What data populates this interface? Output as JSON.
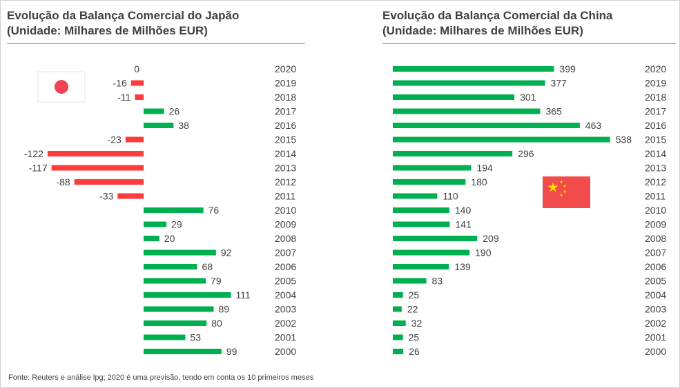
{
  "footnote": "Fonte: Reuters e análise lpg; 2020 é uma previsão, tendo em conta os 10 primeiros meses",
  "colors": {
    "positive": "#00b050",
    "negative": "#ff3b3b",
    "text": "#404040",
    "japan_flag_red": "#f04456",
    "china_flag_red": "#f14b4b",
    "china_flag_star": "#ffde00"
  },
  "chart_data": [
    {
      "type": "bar",
      "orientation": "horizontal",
      "title_line1": "Evolução da Balança Comercial  do Japão",
      "title_line2": "(Unidade: Milhares de Milhões EUR)",
      "flag_icon": "japan-flag-icon",
      "categories": [
        "2020",
        "2019",
        "2018",
        "2017",
        "2016",
        "2015",
        "2014",
        "2013",
        "2012",
        "2011",
        "2010",
        "2009",
        "2008",
        "2007",
        "2006",
        "2005",
        "2004",
        "2003",
        "2002",
        "2001",
        "2000"
      ],
      "values": [
        0,
        -16,
        -11,
        26,
        38,
        -23,
        -122,
        -117,
        -88,
        -33,
        76,
        29,
        20,
        92,
        68,
        79,
        111,
        89,
        80,
        53,
        99
      ],
      "xlim": [
        -140,
        140
      ]
    },
    {
      "type": "bar",
      "orientation": "horizontal",
      "title_line1": "Evolução da Balança Comercial  da China",
      "title_line2": "(Unidade: Milhares de Milhões EUR)",
      "flag_icon": "china-flag-icon",
      "categories": [
        "2020",
        "2019",
        "2018",
        "2017",
        "2016",
        "2015",
        "2014",
        "2013",
        "2012",
        "2011",
        "2010",
        "2009",
        "2008",
        "2007",
        "2006",
        "2005",
        "2004",
        "2003",
        "2002",
        "2001",
        "2000"
      ],
      "values": [
        399,
        377,
        301,
        365,
        463,
        538,
        296,
        194,
        180,
        110,
        140,
        141,
        209,
        190,
        139,
        83,
        25,
        22,
        32,
        25,
        26
      ],
      "xlim": [
        0,
        600
      ]
    }
  ]
}
